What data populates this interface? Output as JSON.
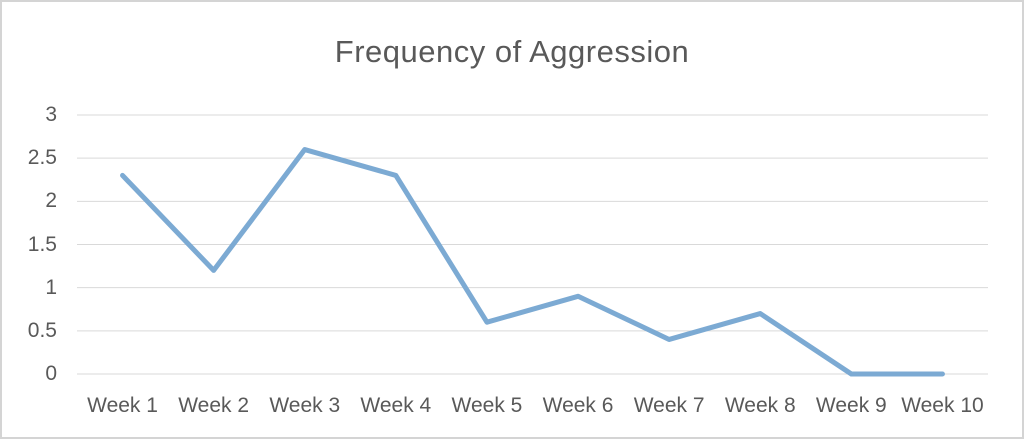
{
  "chart_data": {
    "type": "line",
    "title": "Frequency of Aggression",
    "categories": [
      "Week 1",
      "Week 2",
      "Week 3",
      "Week 4",
      "Week 5",
      "Week 6",
      "Week 7",
      "Week 8",
      "Week 9",
      "Week 10"
    ],
    "series": [
      {
        "name": "Frequency of Aggression",
        "values": [
          2.3,
          1.2,
          2.6,
          2.3,
          0.6,
          0.9,
          0.4,
          0.7,
          0,
          0
        ]
      }
    ],
    "xlabel": "",
    "ylabel": "",
    "ylim": [
      0,
      3
    ],
    "y_tick_labels": [
      "0",
      "0.5",
      "1",
      "1.5",
      "2",
      "2.5",
      "3"
    ],
    "grid": "horizontal",
    "legend": "none",
    "colors": {
      "line": "#7caad3",
      "gridline": "#d9d9d9",
      "text": "#595959",
      "frame_border": "#d4d4d4",
      "background": "#ffffff"
    }
  }
}
